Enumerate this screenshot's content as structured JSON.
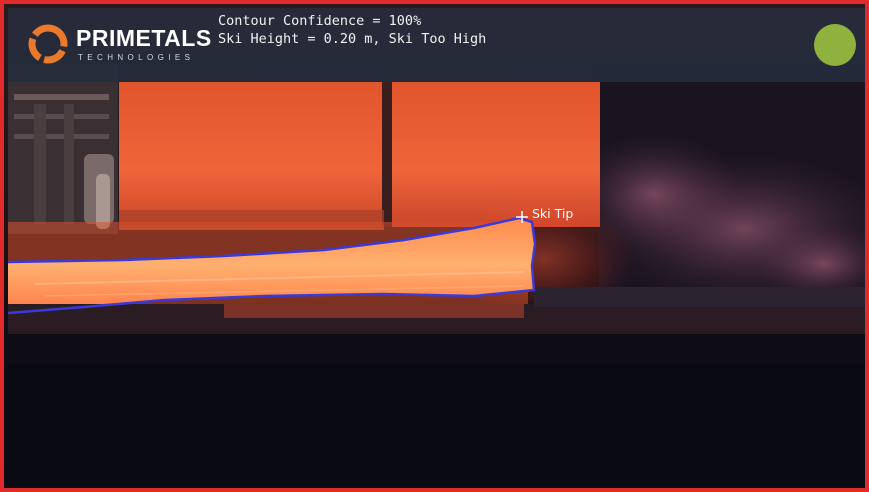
{
  "brand": {
    "name": "PRIMETALS",
    "subtitle": "TECHNOLOGIES",
    "logo_icon": "primetals-ring-logo",
    "ring_color": "#e97a2c"
  },
  "overlay": {
    "contour_confidence": "Contour Confidence = 100%",
    "ski_status": "Ski Height = 0.20 m, Ski Too High"
  },
  "status_indicator": {
    "color": "#8fb23e",
    "state": "ok"
  },
  "detection": {
    "tip_label": "Ski Tip",
    "contour_color": "#3a3ad8",
    "marker_icon": "crosshair-icon"
  },
  "frame": {
    "border_color": "#e12a2a"
  }
}
